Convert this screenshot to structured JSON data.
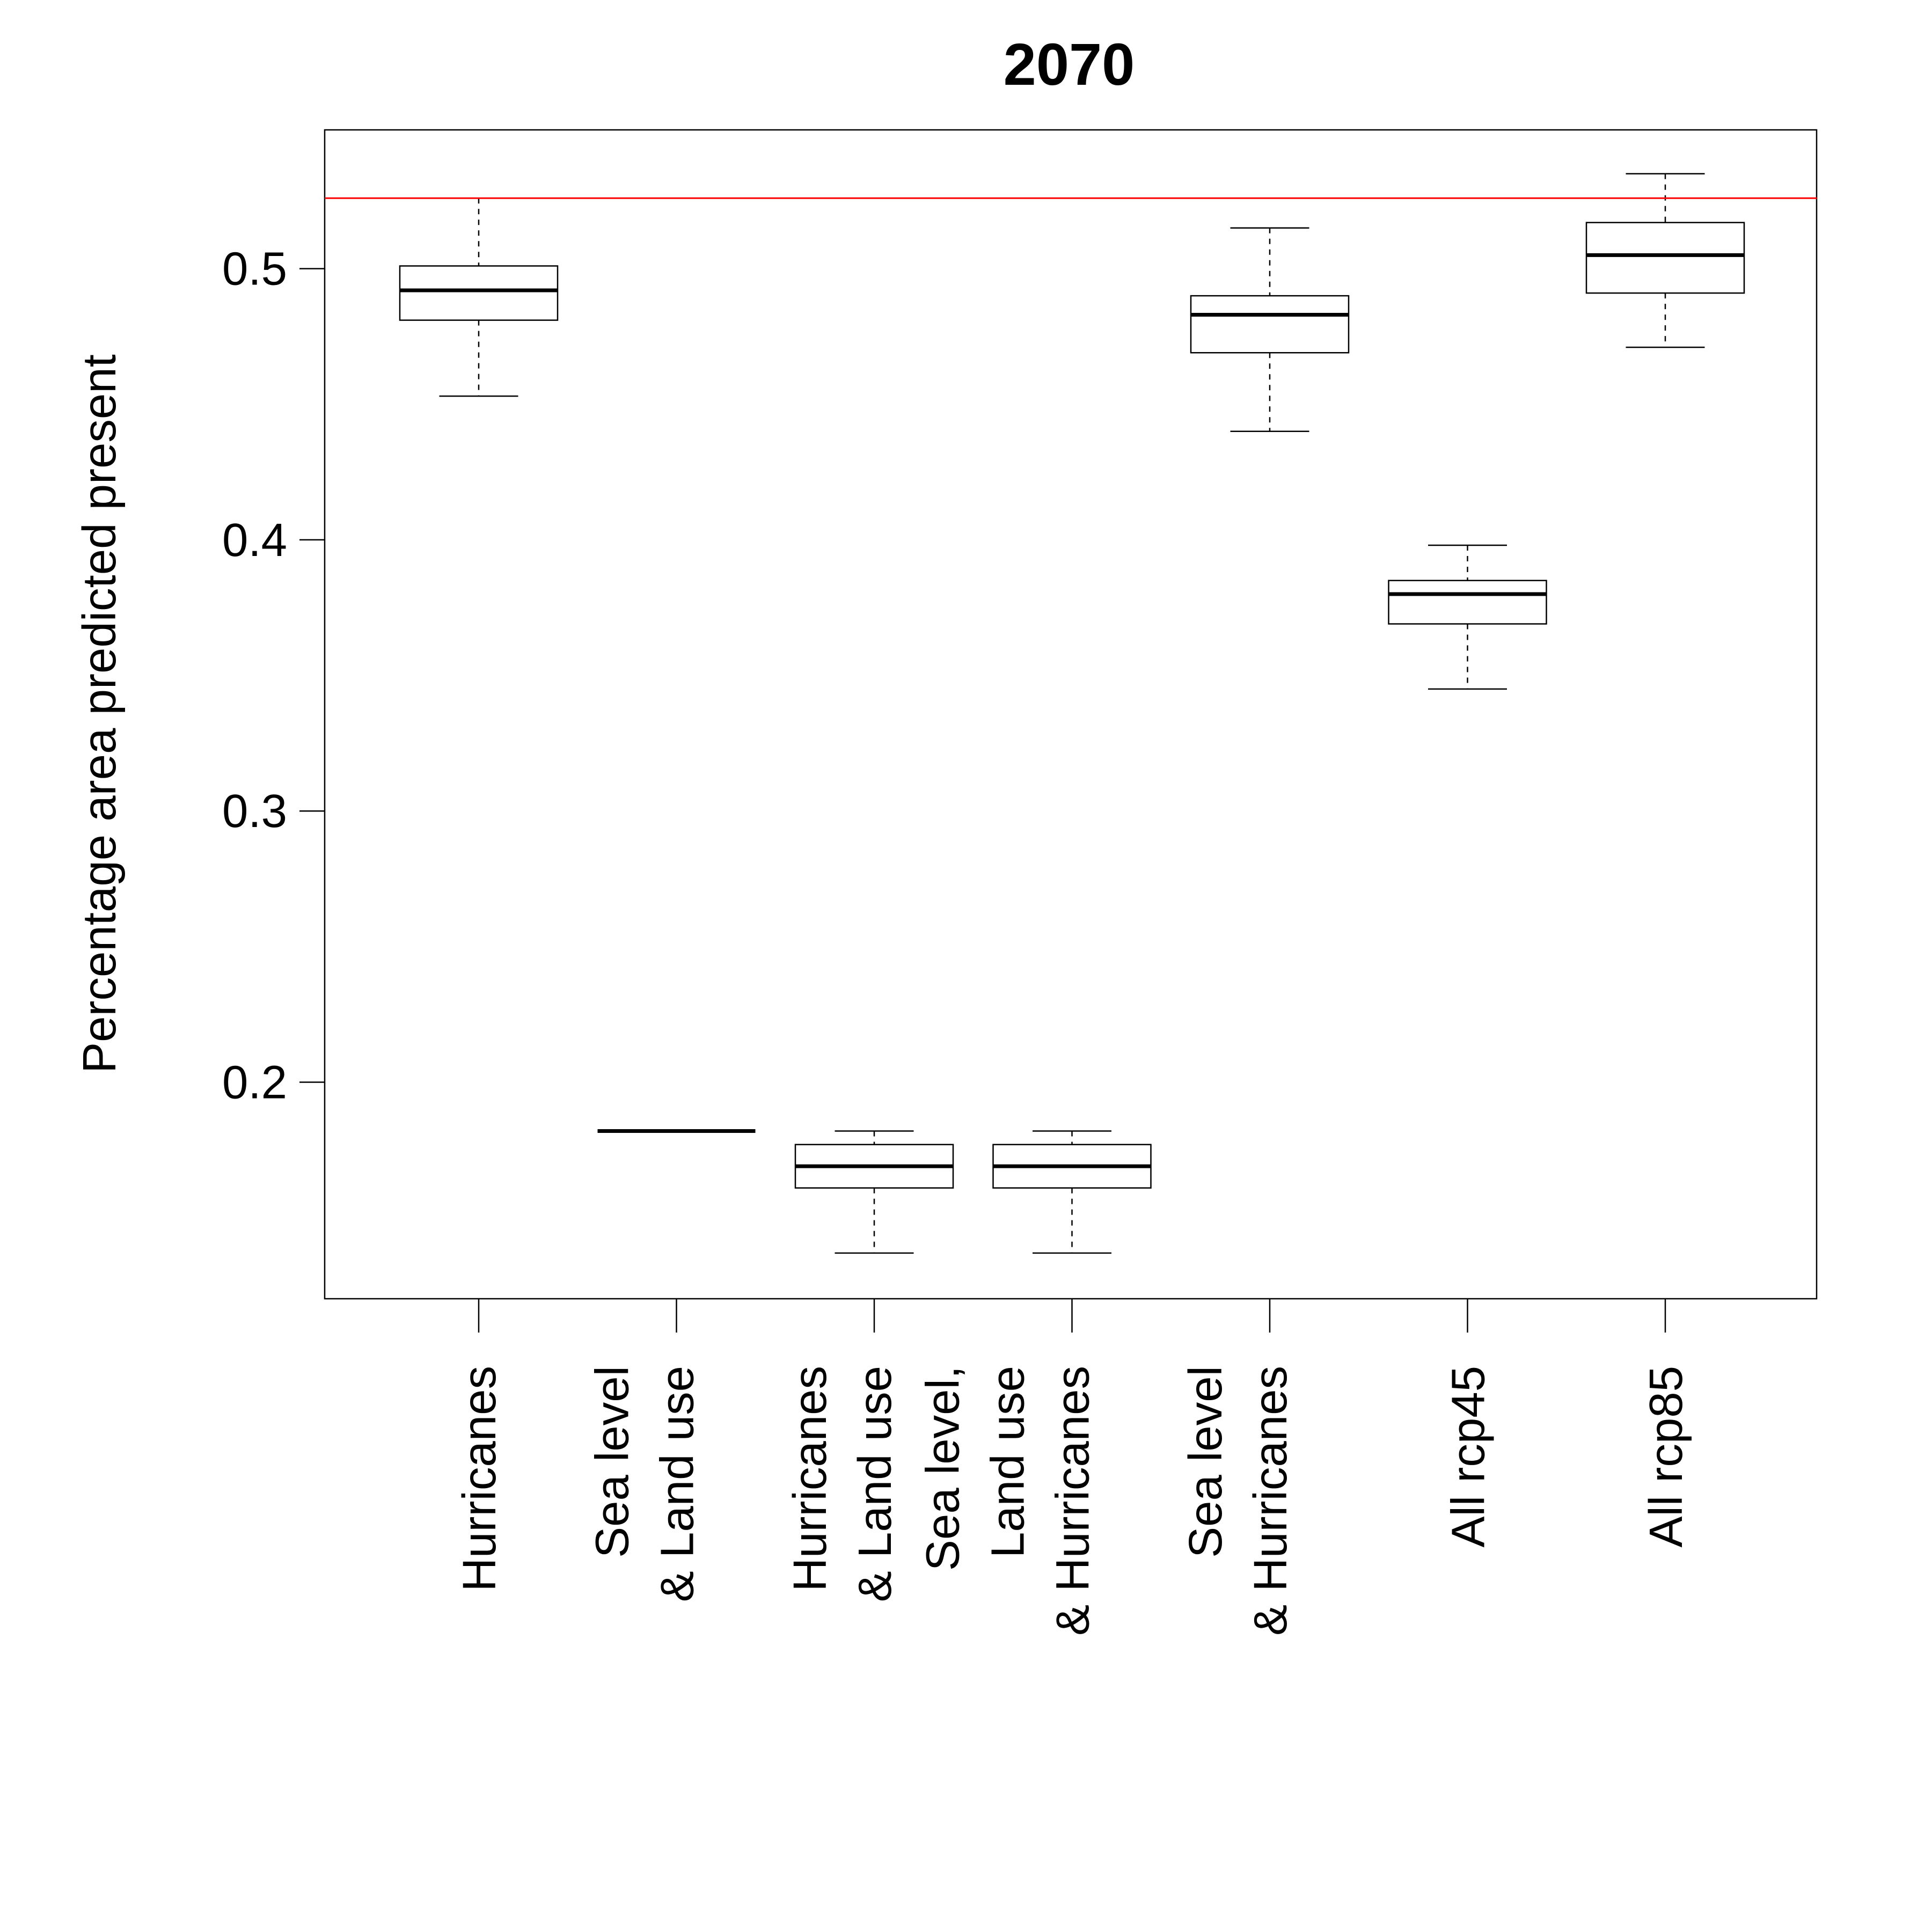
{
  "chart_data": {
    "type": "boxplot",
    "title": "2070",
    "xlabel": "",
    "ylabel": "Percentage area predicted present",
    "ylim": [
      0.12,
      0.55
    ],
    "yticks": [
      0.2,
      0.3,
      0.4,
      0.5
    ],
    "ytick_labels": [
      "0.2",
      "0.3",
      "0.4",
      "0.5"
    ],
    "reference_line": {
      "y": 0.526,
      "color": "#ff0000"
    },
    "grid": false,
    "legend": "none",
    "categories": [
      [
        "Hurricanes"
      ],
      [
        "Sea level",
        "& Land use"
      ],
      [
        "Hurricanes",
        "& Land use"
      ],
      [
        "Sea level,",
        "Land use",
        "& Hurricanes"
      ],
      [
        "Sea level",
        "& Hurricanes"
      ],
      [
        "All rcp45"
      ],
      [
        "All rcp85"
      ]
    ],
    "boxes": [
      {
        "whisker_low": 0.453,
        "q1": 0.481,
        "median": 0.492,
        "q3": 0.501,
        "whisker_high": 0.526
      },
      {
        "whisker_low": 0.182,
        "q1": 0.182,
        "median": 0.182,
        "q3": 0.182,
        "whisker_high": 0.182
      },
      {
        "whisker_low": 0.137,
        "q1": 0.161,
        "median": 0.169,
        "q3": 0.177,
        "whisker_high": 0.182
      },
      {
        "whisker_low": 0.137,
        "q1": 0.161,
        "median": 0.169,
        "q3": 0.177,
        "whisker_high": 0.182
      },
      {
        "whisker_low": 0.44,
        "q1": 0.469,
        "median": 0.483,
        "q3": 0.49,
        "whisker_high": 0.515
      },
      {
        "whisker_low": 0.345,
        "q1": 0.369,
        "median": 0.38,
        "q3": 0.385,
        "whisker_high": 0.398
      },
      {
        "whisker_low": 0.471,
        "q1": 0.491,
        "median": 0.505,
        "q3": 0.517,
        "whisker_high": 0.535
      }
    ]
  }
}
